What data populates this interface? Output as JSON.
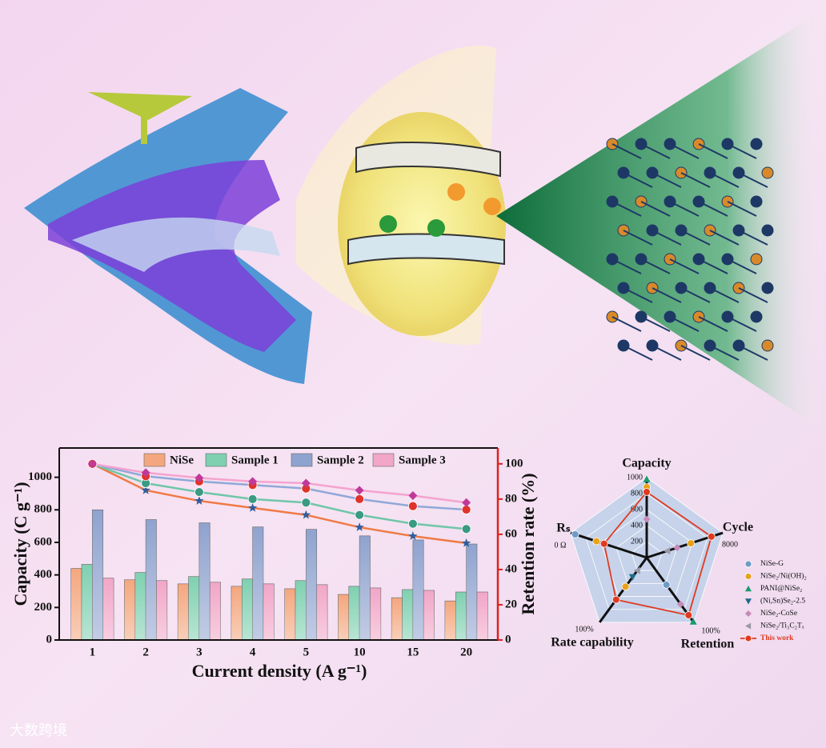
{
  "watermark": "大数跨境",
  "chart_data": [
    {
      "type": "bar",
      "ylabel": "Capacity (C g⁻¹)",
      "y2label": "Retention rate (%)",
      "xlabel": "Current density (A g⁻¹)",
      "categories": [
        "1",
        "2",
        "3",
        "4",
        "5",
        "10",
        "15",
        "20"
      ],
      "ylim": [
        0,
        1180
      ],
      "yticks": [
        0,
        200,
        400,
        600,
        800,
        1000
      ],
      "y2lim": [
        0,
        109
      ],
      "y2ticks": [
        0,
        20,
        40,
        60,
        80,
        100
      ],
      "series": [
        {
          "name": "NiSe",
          "color": "#f4a77e",
          "line_color": "#f07a45",
          "marker": "star",
          "marker_color": "#2f5d9e",
          "values": [
            440,
            370,
            345,
            330,
            315,
            280,
            260,
            240
          ],
          "retention": [
            100,
            85,
            79,
            75,
            71,
            64,
            59,
            55
          ]
        },
        {
          "name": "Sample 1",
          "color": "#7fd0b0",
          "line_color": "#6fc6a8",
          "marker": "circle",
          "marker_color": "#3a9a82",
          "values": [
            465,
            415,
            390,
            375,
            365,
            330,
            310,
            295
          ],
          "retention": [
            100,
            89,
            84,
            80,
            78,
            71,
            66,
            63
          ]
        },
        {
          "name": "Sample 2",
          "color": "#8fa3cf",
          "line_color": "#8fa8d8",
          "marker": "circle",
          "marker_color": "#e0332b",
          "values": [
            800,
            740,
            720,
            695,
            680,
            640,
            615,
            590
          ],
          "retention": [
            100,
            93,
            90,
            88,
            86,
            80,
            76,
            74
          ]
        },
        {
          "name": "Sample 3",
          "color": "#f2a6c8",
          "line_color": "#f5a3cf",
          "marker": "diamond",
          "marker_color": "#c0399a",
          "values": [
            380,
            365,
            355,
            345,
            340,
            320,
            305,
            295
          ],
          "retention": [
            100,
            95,
            92,
            90,
            89,
            85,
            82,
            78
          ]
        }
      ]
    },
    {
      "type": "radar",
      "rlim": [
        0,
        1000
      ],
      "rticks": [
        200,
        400,
        600,
        800,
        1000
      ],
      "axes": [
        {
          "name": "Capacity"
        },
        {
          "name": "Cycle",
          "end_label": "8000"
        },
        {
          "name": "Retention",
          "end_label": "100%"
        },
        {
          "name": "Rate capability",
          "end_label": "100%"
        },
        {
          "name": "Rₛ",
          "end_label": "0 Ω"
        }
      ],
      "series": [
        {
          "name": "NiSe-G",
          "color": "#6f9bc6",
          "marker": "circle",
          "values": [
            null,
            null,
            420,
            null,
            940
          ]
        },
        {
          "name": "NiSe₂/Ni(OH)₂",
          "color": "#e8a21a",
          "marker": "circle",
          "values": [
            880,
            580,
            null,
            450,
            660
          ]
        },
        {
          "name": "PANI@NiSe₂",
          "color": "#1a9a6a",
          "marker": "triangle",
          "values": [
            980,
            null,
            990,
            null,
            null
          ]
        },
        {
          "name": "(Ni,Sn)Se₂-2.5",
          "color": "#1f6a8a",
          "marker": "triangle-down",
          "values": [
            null,
            null,
            null,
            300,
            null
          ]
        },
        {
          "name": "NiSe₂-CoSe",
          "color": "#c78ab8",
          "marker": "diamond",
          "values": [
            480,
            400,
            720,
            null,
            null
          ]
        },
        {
          "name": "NiSe₂/Ti₃C₂Tₓ",
          "color": "#9a9aa8",
          "marker": "triangle-left",
          "values": [
            null,
            270,
            null,
            200,
            550
          ]
        },
        {
          "name": "This work",
          "color": "#e03a20",
          "marker": "circle",
          "line": true,
          "values": [
            820,
            850,
            890,
            650,
            560
          ]
        }
      ]
    }
  ]
}
